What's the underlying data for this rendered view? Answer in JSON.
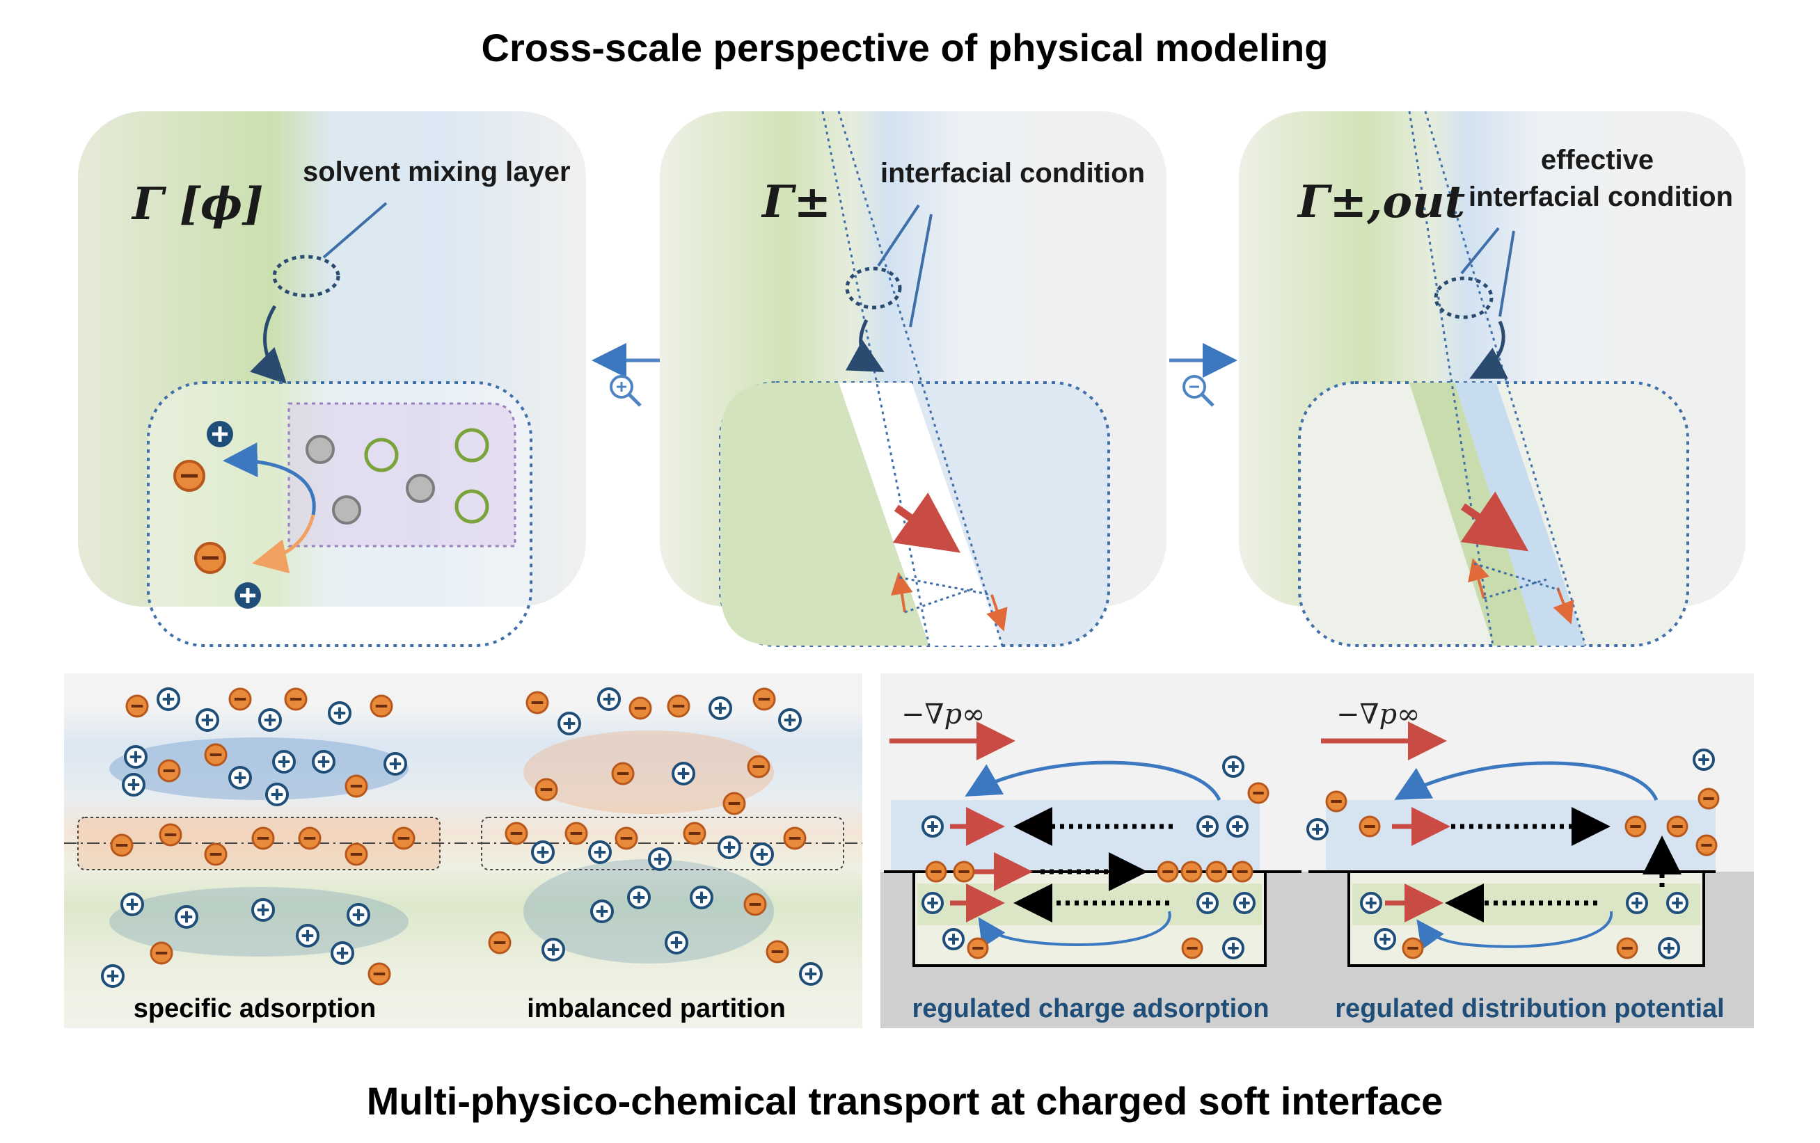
{
  "titles": {
    "top": "Cross-scale perspective of physical modeling",
    "bottom": "Multi-physico-chemical transport at charged soft interface"
  },
  "panels": [
    {
      "symbol": "Γ [ϕ]",
      "label": "solvent mixing layer"
    },
    {
      "symbol": "Γ±",
      "label": "interfacial condition"
    },
    {
      "symbol": "Γ±,out",
      "label_line1": "effective",
      "label_line2": "interfacial condition"
    }
  ],
  "zoom": {
    "left_icon": "zoom-in-icon",
    "right_icon": "zoom-out-icon"
  },
  "captions": {
    "a": "specific adsorption",
    "b": "imbalanced partition",
    "c": "regulated charge adsorption",
    "d": "regulated distribution potential"
  },
  "gradient_label": "−∇p∞",
  "colors": {
    "anion": "#e98a3a",
    "cation": "#1f4e79",
    "green_phase": "#c9dcae",
    "blue_phase": "#c8dcf0",
    "arrow_red": "#c84c44",
    "arrow_blue": "#3b78c0"
  }
}
